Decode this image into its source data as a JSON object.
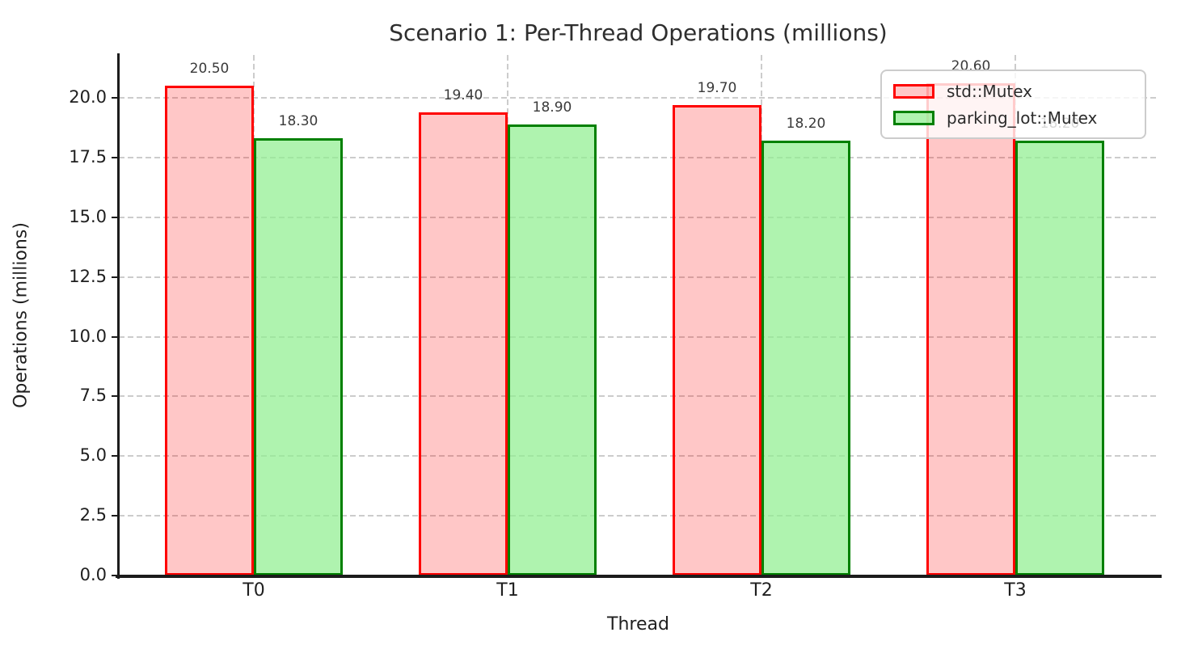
{
  "chart_data": {
    "type": "bar",
    "title": "Scenario 1: Per-Thread Operations (millions)",
    "xlabel": "Thread",
    "ylabel": "Operations (millions)",
    "categories": [
      "T0",
      "T1",
      "T2",
      "T3"
    ],
    "series": [
      {
        "name": "std::Mutex",
        "values": [
          20.5,
          19.4,
          19.7,
          20.6
        ],
        "edge_color": "#ff0000",
        "fill_color": "rgba(255,0,0,0.22)"
      },
      {
        "name": "parking_lot::Mutex",
        "values": [
          18.3,
          18.9,
          18.2,
          18.2
        ],
        "edge_color": "#008000",
        "fill_color": "rgba(144,238,144,0.72)"
      }
    ],
    "bar_label_format": "2-decimal",
    "ytick_values": [
      0.0,
      2.5,
      5.0,
      7.5,
      10.0,
      12.5,
      15.0,
      17.5,
      20.0
    ],
    "ytick_labels": [
      "0.0",
      "2.5",
      "5.0",
      "7.5",
      "10.0",
      "12.5",
      "15.0",
      "17.5",
      "20.0"
    ],
    "ylim": [
      0,
      21.8
    ],
    "grid": "dashed-horizontal-and-vertical",
    "grid_color": "#cccccc",
    "legend_position": "upper right",
    "legend_labels": [
      "std::Mutex",
      "parking_lot::Mutex"
    ]
  }
}
